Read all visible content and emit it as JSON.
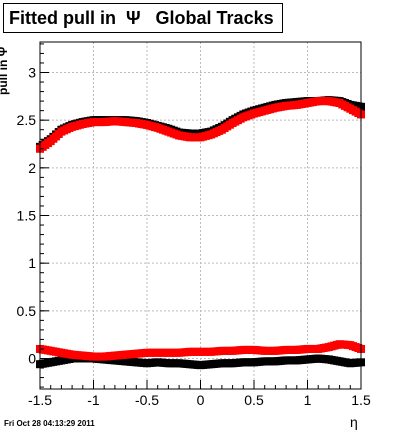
{
  "title": "Fitted pull in  Ψ   Global Tracks",
  "ylabel": "pull in Ψ",
  "xlabel": "η",
  "timestamp": "Fri Oct 28 04:13:29 2011",
  "chart_data": {
    "type": "scatter",
    "title": "Fitted pull in Ψ   Global Tracks",
    "xlabel": "η",
    "ylabel": "pull in Ψ",
    "xlim": [
      -1.5,
      1.5
    ],
    "ylim": [
      -0.32,
      3.32
    ],
    "x_ticks": [
      -1.5,
      -1,
      -0.5,
      0,
      0.5,
      1,
      1.5
    ],
    "x_tick_labels": [
      "-1.5",
      "-1",
      "-0.5",
      "0",
      "0.5",
      "1",
      "1.5"
    ],
    "y_ticks": [
      0,
      0.5,
      1,
      1.5,
      2,
      2.5,
      3
    ],
    "y_tick_labels": [
      "0",
      "0.5",
      "1",
      "1.5",
      "2",
      "2.5",
      "3"
    ],
    "grid": true,
    "series": [
      {
        "color": "#000000",
        "role": "upper-pull",
        "x": [
          -1.5,
          -1.4,
          -1.3,
          -1.2,
          -1.1,
          -1.0,
          -0.9,
          -0.8,
          -0.7,
          -0.6,
          -0.5,
          -0.4,
          -0.3,
          -0.2,
          -0.1,
          0.0,
          0.1,
          0.2,
          0.3,
          0.4,
          0.5,
          0.6,
          0.7,
          0.8,
          0.9,
          1.0,
          1.1,
          1.2,
          1.3,
          1.4,
          1.5
        ],
        "y": [
          2.22,
          2.3,
          2.4,
          2.45,
          2.48,
          2.5,
          2.5,
          2.5,
          2.5,
          2.49,
          2.47,
          2.44,
          2.41,
          2.37,
          2.36,
          2.36,
          2.38,
          2.43,
          2.5,
          2.56,
          2.6,
          2.63,
          2.66,
          2.68,
          2.69,
          2.7,
          2.7,
          2.71,
          2.7,
          2.66,
          2.64
        ]
      },
      {
        "color": "#ff0000",
        "role": "upper-pull",
        "x": [
          -1.5,
          -1.4,
          -1.3,
          -1.2,
          -1.1,
          -1.0,
          -0.9,
          -0.8,
          -0.7,
          -0.6,
          -0.5,
          -0.4,
          -0.3,
          -0.2,
          -0.1,
          0.0,
          0.1,
          0.2,
          0.3,
          0.4,
          0.5,
          0.6,
          0.7,
          0.8,
          0.9,
          1.0,
          1.1,
          1.2,
          1.3,
          1.4,
          1.5
        ],
        "y": [
          2.2,
          2.28,
          2.38,
          2.43,
          2.46,
          2.48,
          2.48,
          2.49,
          2.48,
          2.47,
          2.45,
          2.42,
          2.38,
          2.34,
          2.32,
          2.32,
          2.35,
          2.4,
          2.47,
          2.53,
          2.57,
          2.6,
          2.63,
          2.65,
          2.66,
          2.68,
          2.7,
          2.7,
          2.68,
          2.62,
          2.56
        ]
      },
      {
        "color": "#000000",
        "role": "lower-mean",
        "x": [
          -1.5,
          -1.4,
          -1.3,
          -1.2,
          -1.1,
          -1.0,
          -0.9,
          -0.8,
          -0.7,
          -0.6,
          -0.5,
          -0.4,
          -0.3,
          -0.2,
          -0.1,
          0.0,
          0.1,
          0.2,
          0.3,
          0.4,
          0.5,
          0.6,
          0.7,
          0.8,
          0.9,
          1.0,
          1.1,
          1.2,
          1.3,
          1.4,
          1.5
        ],
        "y": [
          -0.06,
          -0.04,
          -0.02,
          0.0,
          0.0,
          0.0,
          -0.01,
          -0.02,
          -0.03,
          -0.04,
          -0.05,
          -0.04,
          -0.05,
          -0.05,
          -0.06,
          -0.07,
          -0.06,
          -0.05,
          -0.05,
          -0.04,
          -0.04,
          -0.03,
          -0.03,
          -0.02,
          -0.02,
          -0.01,
          0.0,
          -0.01,
          -0.03,
          -0.05,
          -0.04
        ]
      },
      {
        "color": "#ff0000",
        "role": "lower-mean",
        "x": [
          -1.5,
          -1.4,
          -1.3,
          -1.2,
          -1.1,
          -1.0,
          -0.9,
          -0.8,
          -0.7,
          -0.6,
          -0.5,
          -0.4,
          -0.3,
          -0.2,
          -0.1,
          0.0,
          0.1,
          0.2,
          0.3,
          0.4,
          0.5,
          0.6,
          0.7,
          0.8,
          0.9,
          1.0,
          1.1,
          1.2,
          1.3,
          1.4,
          1.5
        ],
        "y": [
          0.1,
          0.08,
          0.06,
          0.04,
          0.03,
          0.02,
          0.02,
          0.03,
          0.04,
          0.05,
          0.06,
          0.06,
          0.06,
          0.06,
          0.07,
          0.07,
          0.07,
          0.08,
          0.08,
          0.09,
          0.09,
          0.08,
          0.08,
          0.09,
          0.09,
          0.1,
          0.1,
          0.12,
          0.15,
          0.14,
          0.1
        ]
      }
    ]
  }
}
